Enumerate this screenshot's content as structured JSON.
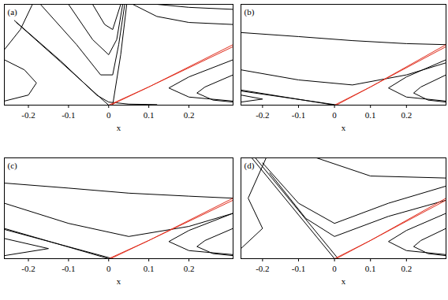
{
  "chart_data": [
    {
      "type": "line",
      "title": "(a)",
      "x_label": "x",
      "xlim": [
        -0.26,
        0.31
      ],
      "ylim": [
        0,
        1
      ],
      "xticks": [
        -0.2,
        -0.1,
        0,
        0.1,
        0.2
      ],
      "yticks": [],
      "tick_labels": "x",
      "series": [
        {
          "color": "#000000",
          "x": [
            -0.23,
            -0.12,
            -0.02,
            0
          ],
          "values": [
            0.82,
            0.43,
            0.07,
            0
          ]
        },
        {
          "color": "#000000",
          "x": [
            -0.235,
            -0.12,
            -0.03,
            0.0,
            0.05,
            0.12
          ],
          "values": [
            0.84,
            0.44,
            0.1,
            0.03,
            0.01,
            0.005
          ]
        },
        {
          "color": "#000000",
          "x": [
            0.01,
            0.03,
            0.045
          ],
          "values": [
            0,
            0.5,
            1
          ]
        },
        {
          "color": "#000000",
          "x": [
            -0.17,
            -0.08,
            -0.02,
            0.01,
            0.025,
            0.04
          ],
          "values": [
            1,
            0.6,
            0.3,
            0.3,
            0.6,
            1
          ]
        },
        {
          "color": "#000000",
          "x": [
            -0.1,
            -0.04,
            0,
            0.02,
            0.035
          ],
          "values": [
            1,
            0.65,
            0.5,
            0.65,
            1
          ]
        },
        {
          "color": "#000000",
          "x": [
            -0.04,
            -0.01,
            0.01,
            0.03
          ],
          "values": [
            1,
            0.8,
            0.75,
            1
          ]
        },
        {
          "color": "#000000",
          "x": [
            -0.19,
            -0.22,
            -0.26
          ],
          "values": [
            1,
            0.75,
            0.55
          ]
        },
        {
          "color": "#000000",
          "x": [
            -0.26,
            -0.21,
            -0.18,
            -0.2,
            -0.26
          ],
          "values": [
            0.45,
            0.35,
            0.22,
            0.1,
            0.04
          ]
        },
        {
          "color": "#000000",
          "x": [
            0.06,
            0.12,
            0.2,
            0.31
          ],
          "values": [
            1,
            0.88,
            0.82,
            0.8
          ]
        },
        {
          "color": "#000000",
          "x": [
            0.12,
            0.2,
            0.31
          ],
          "values": [
            1,
            0.97,
            0.95
          ]
        },
        {
          "color": "#000000",
          "x": [
            0.31,
            0.2,
            0.15,
            0.2,
            0.31
          ],
          "values": [
            0.45,
            0.28,
            0.17,
            0.08,
            0.04
          ]
        },
        {
          "color": "#000000",
          "x": [
            0.31,
            0.24,
            0.22,
            0.26,
            0.31
          ],
          "values": [
            0.3,
            0.18,
            0.12,
            0.05,
            0.03
          ]
        },
        {
          "color": "#e03020",
          "x": [
            0.005,
            0.31
          ],
          "values": [
            0,
            0.58
          ]
        },
        {
          "color": "#e03020",
          "x": [
            0.0,
            0.1,
            0.31
          ],
          "values": [
            0.0,
            0.18,
            0.6
          ]
        }
      ]
    },
    {
      "type": "line",
      "title": "(b)",
      "x_label": "x",
      "xlim": [
        -0.26,
        0.31
      ],
      "ylim": [
        0,
        1
      ],
      "xticks": [
        -0.2,
        -0.1,
        0,
        0.1,
        0.2
      ],
      "yticks": [],
      "tick_labels": "x",
      "series": [
        {
          "color": "#000000",
          "x": [
            -0.26,
            -0.1,
            0.05,
            0.2,
            0.31
          ],
          "values": [
            0.72,
            0.68,
            0.64,
            0.61,
            0.6
          ]
        },
        {
          "color": "#000000",
          "x": [
            -0.26,
            -0.1,
            0.05,
            0.2,
            0.31
          ],
          "values": [
            0.35,
            0.25,
            0.2,
            0.3,
            0.42
          ]
        },
        {
          "color": "#000000",
          "x": [
            0,
            -0.26
          ],
          "values": [
            0,
            0.15
          ]
        },
        {
          "color": "#000000",
          "x": [
            0.01,
            -0.26
          ],
          "values": [
            0,
            0.14
          ]
        },
        {
          "color": "#000000",
          "x": [
            -0.26,
            -0.2,
            -0.26
          ],
          "values": [
            0.1,
            0.06,
            0.03
          ]
        },
        {
          "color": "#000000",
          "x": [
            0.31,
            0.2,
            0.15,
            0.2,
            0.31
          ],
          "values": [
            0.45,
            0.28,
            0.17,
            0.08,
            0.04
          ]
        },
        {
          "color": "#000000",
          "x": [
            0.31,
            0.24,
            0.22,
            0.26,
            0.31
          ],
          "values": [
            0.3,
            0.18,
            0.12,
            0.05,
            0.03
          ]
        },
        {
          "color": "#e03020",
          "x": [
            0.005,
            0.31
          ],
          "values": [
            0,
            0.58
          ]
        },
        {
          "color": "#e03020",
          "x": [
            0.0,
            0.1,
            0.31
          ],
          "values": [
            0.0,
            0.18,
            0.6
          ]
        }
      ]
    },
    {
      "type": "line",
      "title": "(c)",
      "x_label": "x",
      "xlim": [
        -0.26,
        0.31
      ],
      "ylim": [
        0,
        1
      ],
      "xticks": [
        -0.2,
        -0.1,
        0,
        0.1,
        0.2
      ],
      "yticks": [],
      "tick_labels": "x",
      "series": [
        {
          "color": "#000000",
          "x": [
            -0.26,
            -0.1,
            0.05,
            0.2,
            0.31
          ],
          "values": [
            0.75,
            0.7,
            0.65,
            0.62,
            0.6
          ]
        },
        {
          "color": "#000000",
          "x": [
            -0.26,
            -0.1,
            0.05,
            0.2,
            0.31
          ],
          "values": [
            0.55,
            0.35,
            0.22,
            0.32,
            0.45
          ]
        },
        {
          "color": "#000000",
          "x": [
            0,
            -0.26
          ],
          "values": [
            0,
            0.3
          ]
        },
        {
          "color": "#000000",
          "x": [
            0.01,
            -0.26
          ],
          "values": [
            0,
            0.29
          ]
        },
        {
          "color": "#000000",
          "x": [
            -0.26,
            -0.15,
            -0.26
          ],
          "values": [
            0.2,
            0.1,
            0.03
          ]
        },
        {
          "color": "#000000",
          "x": [
            0.31,
            0.2,
            0.15,
            0.2,
            0.31
          ],
          "values": [
            0.45,
            0.28,
            0.17,
            0.08,
            0.04
          ]
        },
        {
          "color": "#000000",
          "x": [
            0.31,
            0.24,
            0.22,
            0.26,
            0.31
          ],
          "values": [
            0.3,
            0.18,
            0.12,
            0.05,
            0.03
          ]
        },
        {
          "color": "#e03020",
          "x": [
            0.005,
            0.31
          ],
          "values": [
            0,
            0.58
          ]
        },
        {
          "color": "#e03020",
          "x": [
            0.0,
            0.1,
            0.31
          ],
          "values": [
            0.0,
            0.18,
            0.6
          ]
        }
      ]
    },
    {
      "type": "line",
      "title": "(d)",
      "x_label": "x",
      "xlim": [
        -0.26,
        0.31
      ],
      "ylim": [
        0,
        1
      ],
      "xticks": [
        -0.2,
        -0.1,
        0,
        0.1,
        0.2
      ],
      "yticks": [],
      "tick_labels": "x",
      "series": [
        {
          "color": "#000000",
          "x": [
            0,
            -0.23
          ],
          "values": [
            0,
            1
          ]
        },
        {
          "color": "#000000",
          "x": [
            0.01,
            -0.22
          ],
          "values": [
            0,
            1
          ]
        },
        {
          "color": "#000000",
          "x": [
            -0.2,
            -0.1,
            0,
            0.15,
            0.31
          ],
          "values": [
            0.95,
            0.55,
            0.35,
            0.55,
            0.72
          ]
        },
        {
          "color": "#000000",
          "x": [
            -0.18,
            -0.08,
            0.0,
            0.15,
            0.31
          ],
          "values": [
            0.85,
            0.4,
            0.22,
            0.42,
            0.58
          ]
        },
        {
          "color": "#000000",
          "x": [
            -0.05,
            0.1,
            0.31
          ],
          "values": [
            1,
            0.82,
            0.8
          ]
        },
        {
          "color": "#000000",
          "x": [
            -0.19,
            -0.24,
            -0.2,
            -0.26
          ],
          "values": [
            1,
            0.6,
            0.3,
            0.1
          ]
        },
        {
          "color": "#000000",
          "x": [
            0.31,
            0.2,
            0.15,
            0.2,
            0.31
          ],
          "values": [
            0.45,
            0.28,
            0.17,
            0.08,
            0.04
          ]
        },
        {
          "color": "#000000",
          "x": [
            0.31,
            0.24,
            0.22,
            0.26,
            0.31
          ],
          "values": [
            0.3,
            0.18,
            0.12,
            0.05,
            0.03
          ]
        },
        {
          "color": "#e03020",
          "x": [
            0.005,
            0.31
          ],
          "values": [
            0,
            0.58
          ]
        },
        {
          "color": "#e03020",
          "x": [
            0.0,
            0.1,
            0.31
          ],
          "values": [
            0.0,
            0.18,
            0.6
          ]
        }
      ]
    }
  ]
}
